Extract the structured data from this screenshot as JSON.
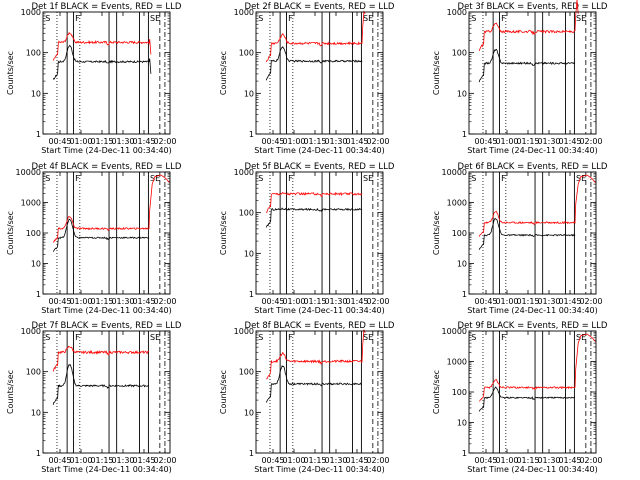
{
  "chart_data": [
    {
      "type": "line",
      "title": "Det 1f BLACK = Events, RED = LLD",
      "ylabel": "Counts/sec",
      "xlabel": "Start Time (24-Dec-11 00:34:40)",
      "yscale": "log",
      "ylim": [
        1,
        1000
      ],
      "yticks": [
        "1",
        "10",
        "100",
        "1000"
      ],
      "xlim": [
        0,
        100
      ],
      "xticks": [
        "00:45",
        "01:00",
        "01:15",
        "01:30",
        "01:45",
        "02:00"
      ],
      "flags": [
        "S",
        "F",
        "SE"
      ],
      "black_level": 60,
      "red_level": 180,
      "peak_x": 21,
      "black_peak": 150,
      "red_peak": 310,
      "tail": "drop",
      "series": [
        {
          "name": "Events",
          "color": "#000000"
        },
        {
          "name": "LLD",
          "color": "#ff0000"
        }
      ]
    },
    {
      "type": "line",
      "title": "Det 2f BLACK = Events, RED = LLD",
      "ylabel": "Counts/sec",
      "xlabel": "Start Time (24-Dec-11 00:34:40)",
      "yscale": "log",
      "ylim": [
        1,
        1000
      ],
      "yticks": [
        "1",
        "10",
        "100",
        "1000"
      ],
      "xlim": [
        0,
        100
      ],
      "xticks": [
        "00:45",
        "01:00",
        "01:15",
        "01:30",
        "01:45",
        "02:00"
      ],
      "flags": [
        "S",
        "F",
        "SE"
      ],
      "black_level": 62,
      "red_level": 170,
      "peak_x": 21,
      "black_peak": 140,
      "red_peak": 280,
      "tail": "rise",
      "series": [
        {
          "name": "Events",
          "color": "#000000"
        },
        {
          "name": "LLD",
          "color": "#ff0000"
        }
      ]
    },
    {
      "type": "line",
      "title": "Det 3f BLACK = Events, RED = LLD",
      "ylabel": "Counts/sec",
      "xlabel": "Start Time (24-Dec-11 00:34:40)",
      "yscale": "log",
      "ylim": [
        1,
        1000
      ],
      "yticks": [
        "1",
        "10",
        "100",
        "1000"
      ],
      "xlim": [
        0,
        100
      ],
      "xticks": [
        "00:45",
        "01:00",
        "01:15",
        "01:30",
        "01:45",
        "02:00"
      ],
      "flags": [
        "S",
        "F",
        "SE"
      ],
      "black_level": 55,
      "red_level": 330,
      "peak_x": 21,
      "black_peak": 120,
      "red_peak": 520,
      "tail": "rise",
      "series": [
        {
          "name": "Events",
          "color": "#000000"
        },
        {
          "name": "LLD",
          "color": "#ff0000"
        }
      ]
    },
    {
      "type": "line",
      "title": "Det 4f BLACK = Events, RED = LLD",
      "ylabel": "Counts/sec",
      "xlabel": "Start Time (24-Dec-11 00:34:40)",
      "yscale": "log",
      "ylim": [
        1,
        10000
      ],
      "yticks": [
        "1",
        "10",
        "100",
        "1000",
        "10000"
      ],
      "xlim": [
        0,
        100
      ],
      "xticks": [
        "00:45",
        "01:00",
        "01:15",
        "01:30",
        "01:45",
        "02:00"
      ],
      "flags": [
        "S",
        "F",
        "SE"
      ],
      "black_level": 70,
      "red_level": 140,
      "peak_x": 21,
      "black_peak": 280,
      "red_peak": 350,
      "tail": "high",
      "series": [
        {
          "name": "Events",
          "color": "#000000"
        },
        {
          "name": "LLD",
          "color": "#ff0000"
        }
      ]
    },
    {
      "type": "line",
      "title": "Det 5f BLACK = Events, RED = LLD",
      "ylabel": "Counts/sec",
      "xlabel": "Start Time (24-Dec-11 00:34:40)",
      "yscale": "log",
      "ylim": [
        1,
        1000
      ],
      "yticks": [
        "1",
        "10",
        "100",
        "1000"
      ],
      "xlim": [
        0,
        100
      ],
      "xticks": [
        "00:45",
        "01:00",
        "01:15",
        "01:30",
        "01:45",
        "02:00"
      ],
      "flags": [
        "S",
        "F",
        "SE"
      ],
      "black_level": 120,
      "red_level": 290,
      "peak_x": 21,
      "black_peak": 125,
      "red_peak": 300,
      "tail": "none",
      "series": [
        {
          "name": "Events",
          "color": "#000000"
        },
        {
          "name": "LLD",
          "color": "#ff0000"
        }
      ]
    },
    {
      "type": "line",
      "title": "Det 6f BLACK = Events, RED = LLD",
      "ylabel": "Counts/sec",
      "xlabel": "Start Time (24-Dec-11 00:34:40)",
      "yscale": "log",
      "ylim": [
        1,
        10000
      ],
      "yticks": [
        "1",
        "10",
        "100",
        "1000",
        "10000"
      ],
      "xlim": [
        0,
        100
      ],
      "xticks": [
        "00:45",
        "01:00",
        "01:15",
        "01:30",
        "01:45",
        "02:00"
      ],
      "flags": [
        "S",
        "F",
        "SE"
      ],
      "black_level": 85,
      "red_level": 220,
      "peak_x": 21,
      "black_peak": 300,
      "red_peak": 500,
      "tail": "high",
      "series": [
        {
          "name": "Events",
          "color": "#000000"
        },
        {
          "name": "LLD",
          "color": "#ff0000"
        }
      ]
    },
    {
      "type": "line",
      "title": "Det 7f BLACK = Events, RED = LLD",
      "ylabel": "Counts/sec",
      "xlabel": "Start Time (24-Dec-11 00:34:40)",
      "yscale": "log",
      "ylim": [
        1,
        1000
      ],
      "yticks": [
        "1",
        "10",
        "100",
        "1000"
      ],
      "xlim": [
        0,
        100
      ],
      "xticks": [
        "00:45",
        "01:00",
        "01:15",
        "01:30",
        "01:45",
        "02:00"
      ],
      "flags": [
        "S",
        "F",
        "SE"
      ],
      "black_level": 45,
      "red_level": 300,
      "peak_x": 21,
      "black_peak": 150,
      "red_peak": 420,
      "tail": "none",
      "series": [
        {
          "name": "Events",
          "color": "#000000"
        },
        {
          "name": "LLD",
          "color": "#ff0000"
        }
      ]
    },
    {
      "type": "line",
      "title": "Det 8f BLACK = Events, RED = LLD",
      "ylabel": "Counts/sec",
      "xlabel": "Start Time (24-Dec-11 00:34:40)",
      "yscale": "log",
      "ylim": [
        1,
        1000
      ],
      "yticks": [
        "1",
        "10",
        "100",
        "1000"
      ],
      "xlim": [
        0,
        100
      ],
      "xticks": [
        "00:45",
        "01:00",
        "01:15",
        "01:30",
        "01:45",
        "02:00"
      ],
      "flags": [
        "S",
        "F",
        "SE"
      ],
      "black_level": 50,
      "red_level": 180,
      "peak_x": 21,
      "black_peak": 140,
      "red_peak": 280,
      "tail": "rise",
      "series": [
        {
          "name": "Events",
          "color": "#000000"
        },
        {
          "name": "LLD",
          "color": "#ff0000"
        }
      ]
    },
    {
      "type": "line",
      "title": "Det 9f BLACK = Events, RED = LLD",
      "ylabel": "Counts/sec",
      "xlabel": "Start Time (24-Dec-11 00:34:40)",
      "yscale": "log",
      "ylim": [
        1,
        10000
      ],
      "yticks": [
        "1",
        "10",
        "100",
        "1000",
        "10000"
      ],
      "xlim": [
        0,
        100
      ],
      "xticks": [
        "00:45",
        "01:00",
        "01:15",
        "01:30",
        "01:45",
        "02:00"
      ],
      "flags": [
        "S",
        "F",
        "SE"
      ],
      "black_level": 65,
      "red_level": 140,
      "peak_x": 21,
      "black_peak": 140,
      "red_peak": 250,
      "tail": "high",
      "series": [
        {
          "name": "Events",
          "color": "#000000"
        },
        {
          "name": "LLD",
          "color": "#ff0000"
        }
      ]
    }
  ]
}
